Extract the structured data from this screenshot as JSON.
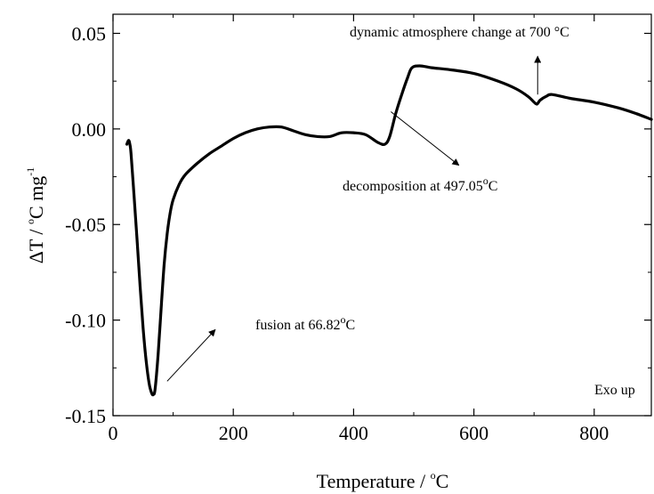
{
  "chart_data": {
    "type": "line",
    "xlabel": {
      "main": "Temperature / ",
      "sup": "o",
      "tail": "C"
    },
    "ylabel": {
      "main": "ΔT / ",
      "sup1": "o",
      "mid": "C mg",
      "sup2": "-1"
    },
    "xlim": [
      0,
      895
    ],
    "ylim": [
      -0.15,
      0.06
    ],
    "xticks": [
      0,
      200,
      400,
      600,
      800
    ],
    "xtick_labels": [
      "0",
      "200",
      "400",
      "600",
      "800"
    ],
    "yticks": [
      0.05,
      0.0,
      -0.05,
      -0.1,
      -0.15
    ],
    "ytick_labels": [
      "0.05",
      "0.00",
      "-0.05",
      "-0.10",
      "-0.15"
    ],
    "grid": false,
    "legend": "none",
    "series": [
      {
        "color": "#000000",
        "points": [
          [
            23,
            -0.008
          ],
          [
            26,
            -0.006
          ],
          [
            28,
            -0.008
          ],
          [
            30,
            -0.013
          ],
          [
            35,
            -0.035
          ],
          [
            40,
            -0.058
          ],
          [
            45,
            -0.082
          ],
          [
            50,
            -0.104
          ],
          [
            55,
            -0.121
          ],
          [
            60,
            -0.133
          ],
          [
            64,
            -0.138
          ],
          [
            67,
            -0.139
          ],
          [
            70,
            -0.136
          ],
          [
            75,
            -0.118
          ],
          [
            80,
            -0.094
          ],
          [
            85,
            -0.071
          ],
          [
            90,
            -0.055
          ],
          [
            95,
            -0.044
          ],
          [
            100,
            -0.037
          ],
          [
            110,
            -0.029
          ],
          [
            120,
            -0.024
          ],
          [
            140,
            -0.018
          ],
          [
            160,
            -0.013
          ],
          [
            180,
            -0.009
          ],
          [
            200,
            -0.005
          ],
          [
            220,
            -0.002
          ],
          [
            240,
            0.0
          ],
          [
            260,
            0.001
          ],
          [
            280,
            0.001
          ],
          [
            300,
            -0.001
          ],
          [
            320,
            -0.003
          ],
          [
            340,
            -0.004
          ],
          [
            360,
            -0.004
          ],
          [
            380,
            -0.002
          ],
          [
            400,
            -0.002
          ],
          [
            420,
            -0.003
          ],
          [
            440,
            -0.007
          ],
          [
            452,
            -0.008
          ],
          [
            460,
            -0.004
          ],
          [
            470,
            0.008
          ],
          [
            480,
            0.018
          ],
          [
            490,
            0.027
          ],
          [
            497,
            0.032
          ],
          [
            510,
            0.033
          ],
          [
            530,
            0.032
          ],
          [
            560,
            0.031
          ],
          [
            600,
            0.029
          ],
          [
            640,
            0.025
          ],
          [
            670,
            0.021
          ],
          [
            690,
            0.017
          ],
          [
            700,
            0.014
          ],
          [
            705,
            0.013
          ],
          [
            710,
            0.015
          ],
          [
            720,
            0.017
          ],
          [
            730,
            0.018
          ],
          [
            760,
            0.016
          ],
          [
            800,
            0.014
          ],
          [
            840,
            0.011
          ],
          [
            870,
            0.008
          ],
          [
            895,
            0.005
          ]
        ]
      }
    ],
    "annotations": [
      {
        "parts": [
          {
            "t": "fusion at 66.82"
          },
          {
            "t": "o",
            "sup": true
          },
          {
            "t": "C"
          }
        ],
        "arrow": {
          "from": [
            90,
            -0.132
          ],
          "to": [
            170,
            -0.105
          ]
        }
      },
      {
        "parts": [
          {
            "t": "decomposition at 497.05"
          },
          {
            "t": "o",
            "sup": true
          },
          {
            "t": "C"
          }
        ],
        "arrow": {
          "from": [
            462,
            0.009
          ],
          "to": [
            575,
            -0.019
          ]
        }
      },
      {
        "parts": [
          {
            "t": "dynamic atmosphere change at 700 °C"
          }
        ],
        "arrow": {
          "from": [
            706,
            0.018
          ],
          "to": [
            706,
            0.038
          ]
        }
      },
      {
        "parts": [
          {
            "t": "Exo up"
          }
        ]
      }
    ]
  }
}
